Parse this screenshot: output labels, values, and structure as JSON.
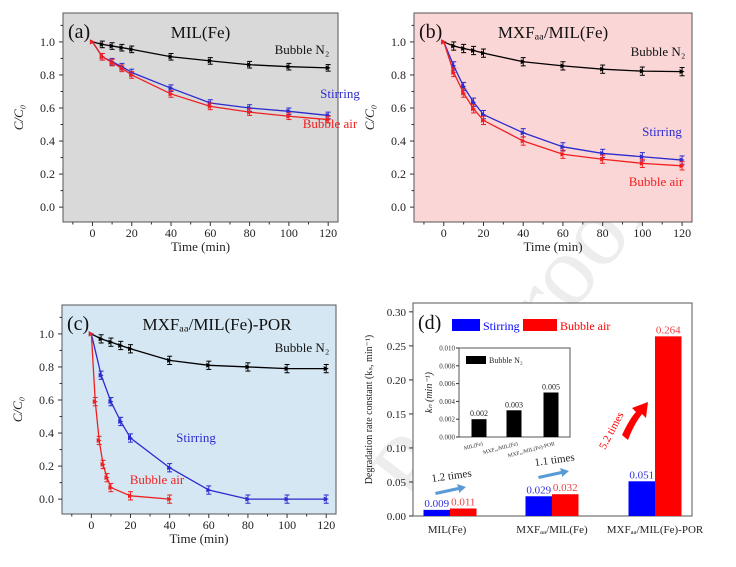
{
  "watermark": "Pre-proofs",
  "chart_data": [
    {
      "panel": "(a)",
      "type": "line",
      "title": "MIL(Fe)",
      "background": "#d9d9d9",
      "xlabel": "Time (min)",
      "ylabel": "C/C₀",
      "xlim": [
        -15,
        125
      ],
      "ylim": [
        -0.09,
        1.175
      ],
      "xticks": [
        0,
        20,
        40,
        60,
        80,
        100,
        120
      ],
      "yticks": [
        "0.0",
        "0.2",
        "0.4",
        "0.6",
        "0.8",
        "1.0"
      ],
      "error": 0.02,
      "series": [
        {
          "name": "Bubble N₂",
          "color": "#000000",
          "x": [
            0,
            5,
            10,
            15,
            20,
            40,
            60,
            80,
            100,
            120
          ],
          "y": [
            1.0,
            0.985,
            0.975,
            0.965,
            0.955,
            0.91,
            0.885,
            0.862,
            0.85,
            0.843
          ]
        },
        {
          "name": "Stirring",
          "color": "#2b2bd0",
          "x": [
            0,
            5,
            10,
            15,
            20,
            40,
            60,
            80,
            100,
            120
          ],
          "y": [
            1.0,
            0.91,
            0.88,
            0.85,
            0.815,
            0.72,
            0.63,
            0.6,
            0.58,
            0.555
          ]
        },
        {
          "name": "Bubble air",
          "color": "#f02020",
          "x": [
            0,
            5,
            10,
            15,
            20,
            40,
            60,
            80,
            100,
            120
          ],
          "y": [
            1.0,
            0.91,
            0.875,
            0.84,
            0.8,
            0.685,
            0.61,
            0.575,
            0.55,
            0.53
          ]
        }
      ]
    },
    {
      "panel": "(b)",
      "type": "line",
      "title": "MXFₐₐ/MIL(Fe)",
      "background": "#fbd6d6",
      "xlabel": "Time (min)",
      "ylabel": "C/C₀",
      "xlim": [
        -15,
        125
      ],
      "ylim": [
        -0.09,
        1.175
      ],
      "xticks": [
        0,
        20,
        40,
        60,
        80,
        100,
        120
      ],
      "yticks": [
        "0.0",
        "0.2",
        "0.4",
        "0.6",
        "0.8",
        "1.0"
      ],
      "error": 0.025,
      "series": [
        {
          "name": "Bubble N₂",
          "color": "#000000",
          "x": [
            0,
            5,
            10,
            15,
            20,
            40,
            60,
            80,
            100,
            120
          ],
          "y": [
            1.0,
            0.975,
            0.96,
            0.948,
            0.932,
            0.88,
            0.855,
            0.835,
            0.823,
            0.82
          ]
        },
        {
          "name": "Stirring",
          "color": "#2b2bd0",
          "x": [
            0,
            5,
            10,
            15,
            20,
            40,
            60,
            80,
            100,
            120
          ],
          "y": [
            1.0,
            0.855,
            0.73,
            0.635,
            0.56,
            0.45,
            0.365,
            0.325,
            0.305,
            0.285
          ]
        },
        {
          "name": "Bubble air",
          "color": "#f02020",
          "x": [
            0,
            5,
            10,
            15,
            20,
            40,
            60,
            80,
            100,
            120
          ],
          "y": [
            1.0,
            0.815,
            0.69,
            0.595,
            0.525,
            0.4,
            0.32,
            0.29,
            0.265,
            0.25
          ]
        }
      ]
    },
    {
      "panel": "(c)",
      "type": "line",
      "title": "MXFₐₐ/MIL(Fe)-POR",
      "background": "#d4e7f3",
      "xlabel": "Time (min)",
      "ylabel": "C/C₀",
      "xlim": [
        -15,
        125
      ],
      "ylim": [
        -0.09,
        1.175
      ],
      "xticks": [
        0,
        20,
        40,
        60,
        80,
        100,
        120
      ],
      "yticks": [
        "0.0",
        "0.2",
        "0.4",
        "0.6",
        "0.8",
        "1.0"
      ],
      "error": 0.025,
      "series": [
        {
          "name": "Bubble N₂",
          "color": "#000000",
          "x": [
            0,
            5,
            10,
            15,
            20,
            40,
            60,
            80,
            100,
            120
          ],
          "y": [
            1.0,
            0.97,
            0.95,
            0.93,
            0.91,
            0.84,
            0.81,
            0.8,
            0.79,
            0.79
          ]
        },
        {
          "name": "Stirring",
          "color": "#2b2bd0",
          "x": [
            0,
            5,
            10,
            15,
            20,
            40,
            60,
            80,
            100,
            120
          ],
          "y": [
            1.0,
            0.75,
            0.59,
            0.47,
            0.37,
            0.19,
            0.055,
            0.0,
            0.0,
            0.0
          ]
        },
        {
          "name": "Bubble air",
          "color": "#f02020",
          "x": [
            0,
            2,
            4,
            6,
            8,
            10,
            20,
            40
          ],
          "y": [
            1.0,
            0.59,
            0.355,
            0.21,
            0.13,
            0.07,
            0.02,
            0.0
          ]
        }
      ]
    },
    {
      "panel": "(d)",
      "type": "bar",
      "ylabel": "Degradation rate constant (kₛ, min⁻¹)",
      "ylim": [
        0,
        0.313
      ],
      "yticks": [
        "0.00",
        "0.05",
        "0.10",
        "0.15",
        "0.20",
        "0.25",
        "0.30"
      ],
      "categories": [
        "MIL(Fe)",
        "MXFₐₐ/MIL(Fe)",
        "MXFₐₐ/MIL(Fe)-POR"
      ],
      "series": [
        {
          "name": "Stirring",
          "color": "#0000ff",
          "values": [
            0.009,
            0.029,
            0.051
          ],
          "labels": [
            "0.009",
            "0.029",
            "0.051"
          ]
        },
        {
          "name": "Bubble air",
          "color": "#ff0000",
          "values": [
            0.011,
            0.032,
            0.264
          ],
          "labels": [
            "0.011",
            "0.032",
            "0.264"
          ]
        }
      ],
      "annotations": [
        {
          "text": "1.2 times",
          "color": "#5a9bd5"
        },
        {
          "text": "1.1 times",
          "color": "#5a9bd5"
        },
        {
          "text": "5.2 times",
          "color": "#ff0000"
        }
      ],
      "legend": "top",
      "inset": {
        "type": "bar",
        "ylabel": "kₙ (min⁻¹)",
        "ylim": [
          0,
          0.01
        ],
        "yticks": [
          "0.000",
          "0.002",
          "0.004",
          "0.006",
          "0.008",
          "0.010"
        ],
        "categories": [
          "MIL(Fe)",
          "MXFₐₐ/MIL(Fe)",
          "MXFₐₐ/MIL(Fe)-POR"
        ],
        "series": [
          {
            "name": "Bubble N₂",
            "color": "#000000",
            "values": [
              0.002,
              0.003,
              0.005
            ],
            "labels": [
              "0.002",
              "0.003",
              "0.005"
            ]
          }
        ],
        "legend": "top-left"
      }
    }
  ]
}
